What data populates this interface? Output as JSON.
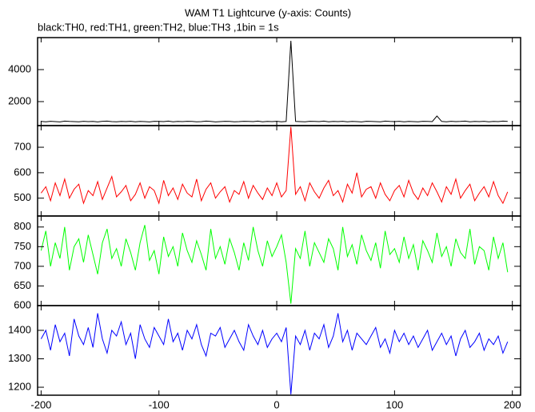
{
  "chart_data": [
    {
      "type": "line",
      "title": "WAM T1 Lightcurve (y-axis: Counts)",
      "subtitle": "black:TH0, red:TH1, green:TH2, blue:TH3 ,1bin = 1s",
      "color": "#000000",
      "x": [
        -200,
        -196,
        -192,
        -188,
        -184,
        -180,
        -176,
        -172,
        -168,
        -164,
        -160,
        -156,
        -152,
        -148,
        -144,
        -140,
        -136,
        -132,
        -128,
        -124,
        -120,
        -116,
        -112,
        -108,
        -104,
        -100,
        -96,
        -92,
        -88,
        -84,
        -80,
        -76,
        -72,
        -68,
        -64,
        -60,
        -56,
        -52,
        -48,
        -44,
        -40,
        -36,
        -32,
        -28,
        -24,
        -20,
        -16,
        -12,
        -8,
        -4,
        0,
        4,
        8,
        12,
        16,
        20,
        24,
        28,
        32,
        36,
        40,
        44,
        48,
        52,
        56,
        60,
        64,
        68,
        72,
        76,
        80,
        84,
        88,
        92,
        96,
        100,
        104,
        108,
        112,
        116,
        120,
        124,
        128,
        132,
        136,
        140,
        144,
        148,
        152,
        156,
        160,
        164,
        168,
        172,
        176,
        180,
        184,
        188,
        192,
        196
      ],
      "values": [
        760,
        740,
        770,
        750,
        730,
        780,
        760,
        750,
        740,
        770,
        750,
        760,
        730,
        770,
        780,
        750,
        740,
        760,
        750,
        770,
        740,
        760,
        750,
        730,
        770,
        760,
        750,
        780,
        740,
        760,
        750,
        770,
        760,
        740,
        750,
        780,
        760,
        730,
        750,
        770,
        760,
        740,
        750,
        770,
        760,
        750,
        780,
        740,
        760,
        750,
        770,
        740,
        760,
        5800,
        760,
        750,
        740,
        770,
        760,
        750,
        780,
        740,
        760,
        750,
        770,
        740,
        760,
        750,
        730,
        770,
        760,
        750,
        740,
        780,
        760,
        750,
        770,
        740,
        760,
        750,
        740,
        770,
        760,
        750,
        1100,
        760,
        740,
        770,
        750,
        760,
        780,
        740,
        760,
        750,
        770,
        740,
        760,
        750,
        780,
        760
      ],
      "xlim": [
        -203,
        207
      ],
      "ylim": [
        500,
        6000
      ],
      "yticks": [
        2000,
        4000
      ]
    },
    {
      "type": "line",
      "color": "#ff0000",
      "x": [
        -200,
        -196,
        -192,
        -188,
        -184,
        -180,
        -176,
        -172,
        -168,
        -164,
        -160,
        -156,
        -152,
        -148,
        -144,
        -140,
        -136,
        -132,
        -128,
        -124,
        -120,
        -116,
        -112,
        -108,
        -104,
        -100,
        -96,
        -92,
        -88,
        -84,
        -80,
        -76,
        -72,
        -68,
        -64,
        -60,
        -56,
        -52,
        -48,
        -44,
        -40,
        -36,
        -32,
        -28,
        -24,
        -20,
        -16,
        -12,
        -8,
        -4,
        0,
        4,
        8,
        12,
        16,
        20,
        24,
        28,
        32,
        36,
        40,
        44,
        48,
        52,
        56,
        60,
        64,
        68,
        72,
        76,
        80,
        84,
        88,
        92,
        96,
        100,
        104,
        108,
        112,
        116,
        120,
        124,
        128,
        132,
        136,
        140,
        144,
        148,
        152,
        156,
        160,
        164,
        168,
        172,
        176,
        180,
        184,
        188,
        192,
        196
      ],
      "values": [
        520,
        545,
        490,
        560,
        510,
        575,
        500,
        535,
        555,
        480,
        530,
        510,
        565,
        495,
        540,
        585,
        505,
        525,
        550,
        490,
        515,
        560,
        500,
        545,
        530,
        480,
        570,
        510,
        540,
        495,
        555,
        520,
        505,
        575,
        490,
        535,
        560,
        500,
        525,
        545,
        485,
        530,
        515,
        565,
        500,
        550,
        520,
        495,
        540,
        510,
        560,
        505,
        530,
        780,
        515,
        545,
        490,
        560,
        525,
        500,
        540,
        570,
        510,
        530,
        485,
        555,
        520,
        600,
        505,
        535,
        545,
        500,
        560,
        515,
        490,
        530,
        550,
        505,
        570,
        520,
        495,
        540,
        510,
        560,
        525,
        485,
        545,
        515,
        575,
        500,
        530,
        555,
        490,
        520,
        545,
        505,
        565,
        510,
        480,
        525
      ],
      "xlim": [
        -203,
        207
      ],
      "ylim": [
        430,
        785
      ],
      "yticks": [
        500,
        600,
        700
      ]
    },
    {
      "type": "line",
      "color": "#00ff00",
      "x": [
        -200,
        -196,
        -192,
        -188,
        -184,
        -180,
        -176,
        -172,
        -168,
        -164,
        -160,
        -156,
        -152,
        -148,
        -144,
        -140,
        -136,
        -132,
        -128,
        -124,
        -120,
        -116,
        -112,
        -108,
        -104,
        -100,
        -96,
        -92,
        -88,
        -84,
        -80,
        -76,
        -72,
        -68,
        -64,
        -60,
        -56,
        -52,
        -48,
        -44,
        -40,
        -36,
        -32,
        -28,
        -24,
        -20,
        -16,
        -12,
        -8,
        -4,
        0,
        4,
        8,
        12,
        16,
        20,
        24,
        28,
        32,
        36,
        40,
        44,
        48,
        52,
        56,
        60,
        64,
        68,
        72,
        76,
        80,
        84,
        88,
        92,
        96,
        100,
        104,
        108,
        112,
        116,
        120,
        124,
        128,
        132,
        136,
        140,
        144,
        148,
        152,
        156,
        160,
        164,
        168,
        172,
        176,
        180,
        184,
        188,
        192,
        196
      ],
      "values": [
        740,
        790,
        700,
        760,
        720,
        800,
        690,
        750,
        770,
        710,
        780,
        730,
        680,
        760,
        795,
        720,
        745,
        700,
        770,
        735,
        690,
        760,
        805,
        715,
        740,
        680,
        775,
        725,
        750,
        700,
        785,
        740,
        710,
        765,
        730,
        690,
        795,
        720,
        750,
        705,
        770,
        735,
        690,
        760,
        715,
        800,
        740,
        700,
        765,
        725,
        750,
        780,
        710,
        605,
        745,
        720,
        790,
        700,
        760,
        735,
        710,
        770,
        745,
        690,
        800,
        725,
        755,
        705,
        780,
        740,
        715,
        760,
        695,
        790,
        730,
        745,
        710,
        775,
        720,
        755,
        690,
        765,
        740,
        710,
        785,
        725,
        750,
        700,
        770,
        735,
        720,
        795,
        705,
        750,
        740,
        690,
        775,
        720,
        760,
        685
      ],
      "xlim": [
        -203,
        207
      ],
      "ylim": [
        600,
        828
      ],
      "yticks": [
        600,
        650,
        700,
        750,
        800
      ]
    },
    {
      "type": "line",
      "color": "#0000ff",
      "x": [
        -200,
        -196,
        -192,
        -188,
        -184,
        -180,
        -176,
        -172,
        -168,
        -164,
        -160,
        -156,
        -152,
        -148,
        -144,
        -140,
        -136,
        -132,
        -128,
        -124,
        -120,
        -116,
        -112,
        -108,
        -104,
        -100,
        -96,
        -92,
        -88,
        -84,
        -80,
        -76,
        -72,
        -68,
        -64,
        -60,
        -56,
        -52,
        -48,
        -44,
        -40,
        -36,
        -32,
        -28,
        -24,
        -20,
        -16,
        -12,
        -8,
        -4,
        0,
        4,
        8,
        12,
        16,
        20,
        24,
        28,
        32,
        36,
        40,
        44,
        48,
        52,
        56,
        60,
        64,
        68,
        72,
        76,
        80,
        84,
        88,
        92,
        96,
        100,
        104,
        108,
        112,
        116,
        120,
        124,
        128,
        132,
        136,
        140,
        144,
        148,
        152,
        156,
        160,
        164,
        168,
        172,
        176,
        180,
        184,
        188,
        192,
        196
      ],
      "values": [
        1370,
        1400,
        1330,
        1420,
        1360,
        1390,
        1310,
        1440,
        1380,
        1350,
        1410,
        1340,
        1460,
        1370,
        1320,
        1400,
        1380,
        1430,
        1350,
        1390,
        1300,
        1420,
        1370,
        1340,
        1410,
        1380,
        1350,
        1440,
        1360,
        1390,
        1330,
        1400,
        1370,
        1420,
        1350,
        1310,
        1390,
        1380,
        1410,
        1340,
        1370,
        1400,
        1360,
        1330,
        1420,
        1380,
        1350,
        1400,
        1340,
        1370,
        1390,
        1360,
        1410,
        1175,
        1380,
        1350,
        1400,
        1330,
        1390,
        1370,
        1420,
        1340,
        1380,
        1460,
        1360,
        1400,
        1330,
        1390,
        1370,
        1350,
        1380,
        1410,
        1340,
        1370,
        1320,
        1400,
        1360,
        1390,
        1350,
        1380,
        1340,
        1370,
        1400,
        1330,
        1360,
        1390,
        1350,
        1380,
        1310,
        1370,
        1400,
        1340,
        1360,
        1390,
        1330,
        1370,
        1350,
        1380,
        1320,
        1360
      ],
      "xlim": [
        -203,
        207
      ],
      "ylim": [
        1172,
        1487
      ],
      "yticks": [
        1200,
        1300,
        1400
      ],
      "xticks": [
        -200,
        -100,
        0,
        100,
        200
      ]
    }
  ]
}
